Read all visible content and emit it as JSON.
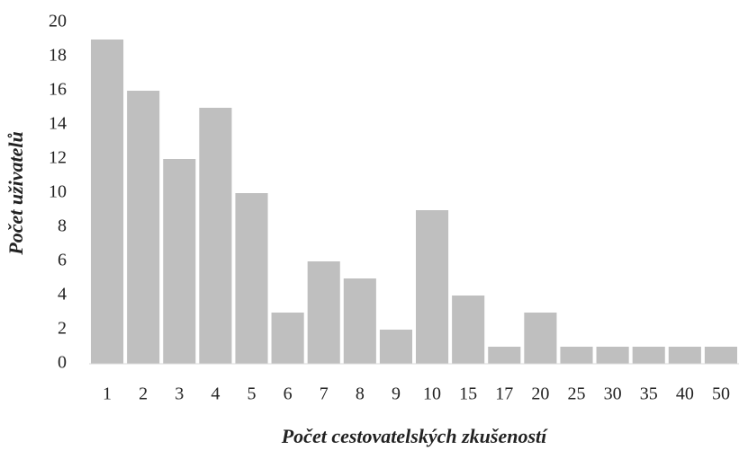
{
  "chart_data": {
    "type": "bar",
    "x_label": "Počet cestovatelských zkušeností",
    "y_label": "Počet uživatelů",
    "categories": [
      "1",
      "2",
      "3",
      "4",
      "5",
      "6",
      "7",
      "8",
      "9",
      "10",
      "15",
      "17",
      "20",
      "25",
      "30",
      "35",
      "40",
      "50"
    ],
    "values": [
      19,
      16,
      12,
      15,
      10,
      3,
      6,
      5,
      2,
      9,
      4,
      1,
      3,
      1,
      1,
      1,
      1,
      1
    ],
    "color": "#bfbfbf",
    "ylim": [
      0,
      20
    ],
    "yticks": [
      0,
      2,
      4,
      6,
      8,
      10,
      12,
      14,
      16,
      18,
      20
    ],
    "grid": false
  }
}
